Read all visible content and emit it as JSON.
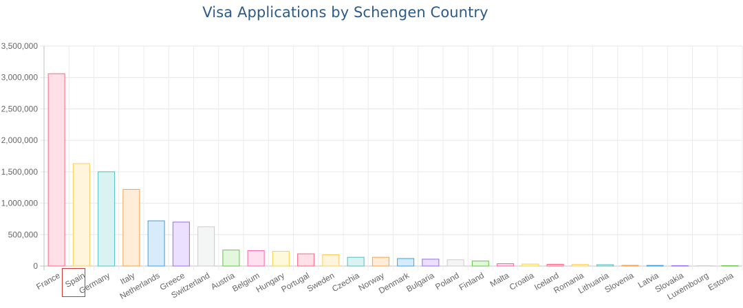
{
  "chart_data": {
    "type": "bar",
    "title": "Visa Applications by Schengen Country",
    "xlabel": "",
    "ylabel": "",
    "ylim": [
      0,
      3500000
    ],
    "yticks": [
      0,
      500000,
      1000000,
      1500000,
      2000000,
      2500000,
      3000000,
      3500000
    ],
    "ytick_labels": [
      "0",
      "500,000",
      "1,000,000",
      "1,500,000",
      "2,000,000",
      "2,500,000",
      "3,000,000",
      "3,500,000"
    ],
    "grid": true,
    "highlighted_category": "Spain",
    "categories": [
      "France",
      "Spain",
      "Germany",
      "Italy",
      "Netherlands",
      "Greece",
      "Switzerland",
      "Austria",
      "Belgium",
      "Hungary",
      "Portugal",
      "Sweden",
      "Czechia",
      "Norway",
      "Denmark",
      "Bulgaria",
      "Poland",
      "Finland",
      "Malta",
      "Croatia",
      "Iceland",
      "Romania",
      "Lithuania",
      "Slovenia",
      "Latvia",
      "Slovakia",
      "Luxembourg",
      "Estonia"
    ],
    "values": [
      3060000,
      1630000,
      1500000,
      1220000,
      720000,
      700000,
      625000,
      255000,
      245000,
      235000,
      195000,
      180000,
      140000,
      140000,
      120000,
      110000,
      100000,
      80000,
      38000,
      32000,
      28000,
      25000,
      22000,
      12000,
      10000,
      6000,
      5000,
      2000
    ],
    "colors": [
      {
        "fill": "#ffe0e6",
        "stroke": "#ff6384"
      },
      {
        "fill": "#fff5dd",
        "stroke": "#ffcd56"
      },
      {
        "fill": "#dbf2f2",
        "stroke": "#4bc0c0"
      },
      {
        "fill": "#ffecd9",
        "stroke": "#ff9f40"
      },
      {
        "fill": "#d7ecfb",
        "stroke": "#36a2eb"
      },
      {
        "fill": "#ebe0ff",
        "stroke": "#9966ff"
      },
      {
        "fill": "#f4f5f5",
        "stroke": "#c9cbcf"
      },
      {
        "fill": "#e3f7dc",
        "stroke": "#5ec940"
      },
      {
        "fill": "#ffe0f0",
        "stroke": "#ff5fa8"
      },
      {
        "fill": "#fff9dc",
        "stroke": "#f4d34a"
      }
    ]
  }
}
